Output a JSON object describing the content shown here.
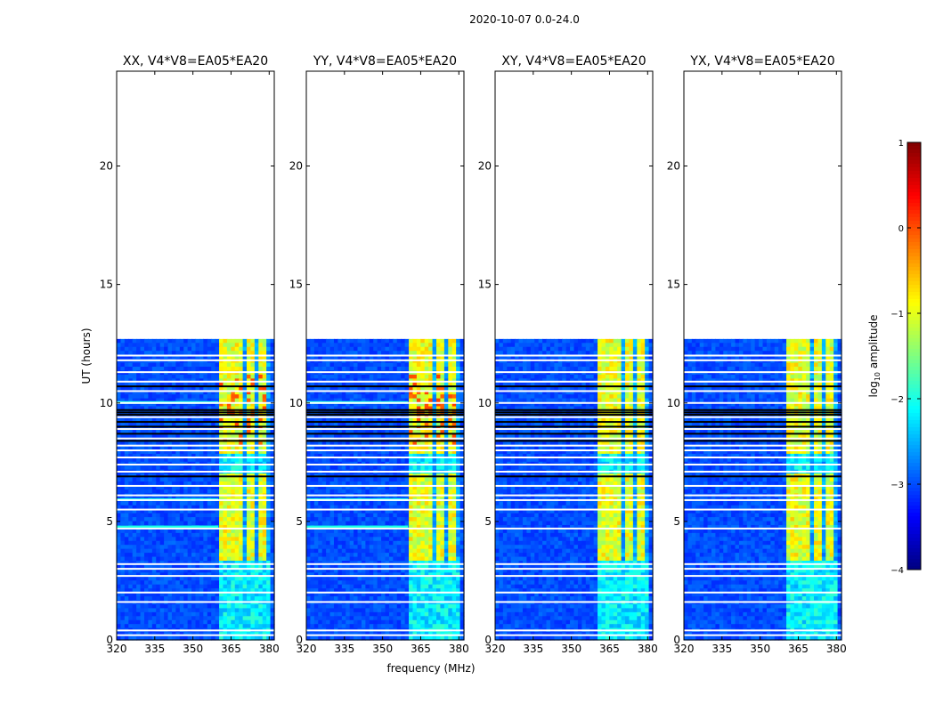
{
  "chart_data": {
    "type": "heatmap",
    "title": "2020-10-07 0.0-24.0",
    "xlabel": "frequency (MHz)",
    "ylabel": "UT (hours)",
    "xlim": [
      320,
      382
    ],
    "ylim": [
      0,
      24
    ],
    "xticks": [
      320,
      335,
      350,
      365,
      380
    ],
    "yticks": [
      0,
      5,
      10,
      15,
      20
    ],
    "data_end_hour": 12.7,
    "bright_band_mhz": [
      360,
      380
    ],
    "bright_columns_mhz": [
      [
        360,
        364.5
      ],
      [
        365.5,
        369.5
      ],
      [
        370.5,
        374.5
      ],
      [
        375.5,
        379.5
      ]
    ],
    "blank_rows_hours": [
      0.2,
      0.4,
      1.6,
      2.0,
      2.7,
      3.0,
      3.2,
      4.7,
      5.5,
      5.9,
      6.1,
      6.5,
      7.1,
      7.4,
      7.7,
      8.0,
      8.2,
      8.5,
      8.9,
      9.4,
      10.0,
      10.5,
      10.9,
      11.3,
      11.8,
      12.0
    ],
    "dark_rows_hours": [
      6.9,
      8.4,
      8.7,
      9.0,
      9.2,
      9.5,
      9.6,
      9.7,
      10.7
    ],
    "panels": [
      {
        "title": "XX, V4*V8=EA05*EA20",
        "pol": "XX",
        "baseline": "V4*V8=EA05*EA20"
      },
      {
        "title": "YY, V4*V8=EA05*EA20",
        "pol": "YY",
        "baseline": "V4*V8=EA05*EA20"
      },
      {
        "title": "XY, V4*V8=EA05*EA20",
        "pol": "XY",
        "baseline": "V4*V8=EA05*EA20"
      },
      {
        "title": "YX, V4*V8=EA05*EA20",
        "pol": "YX",
        "baseline": "V4*V8=EA05*EA20"
      }
    ],
    "colorbar": {
      "label": "log10 amplitude",
      "label_main": "log",
      "label_sub": "10",
      "label_rest": " amplitude",
      "range": [
        -4,
        1
      ],
      "ticks": [
        1,
        0,
        -1,
        -2,
        -3,
        -4
      ],
      "tick_labels": [
        "1",
        "0",
        "−1",
        "−2",
        "−3",
        "−4"
      ],
      "colormap": "jet"
    }
  }
}
